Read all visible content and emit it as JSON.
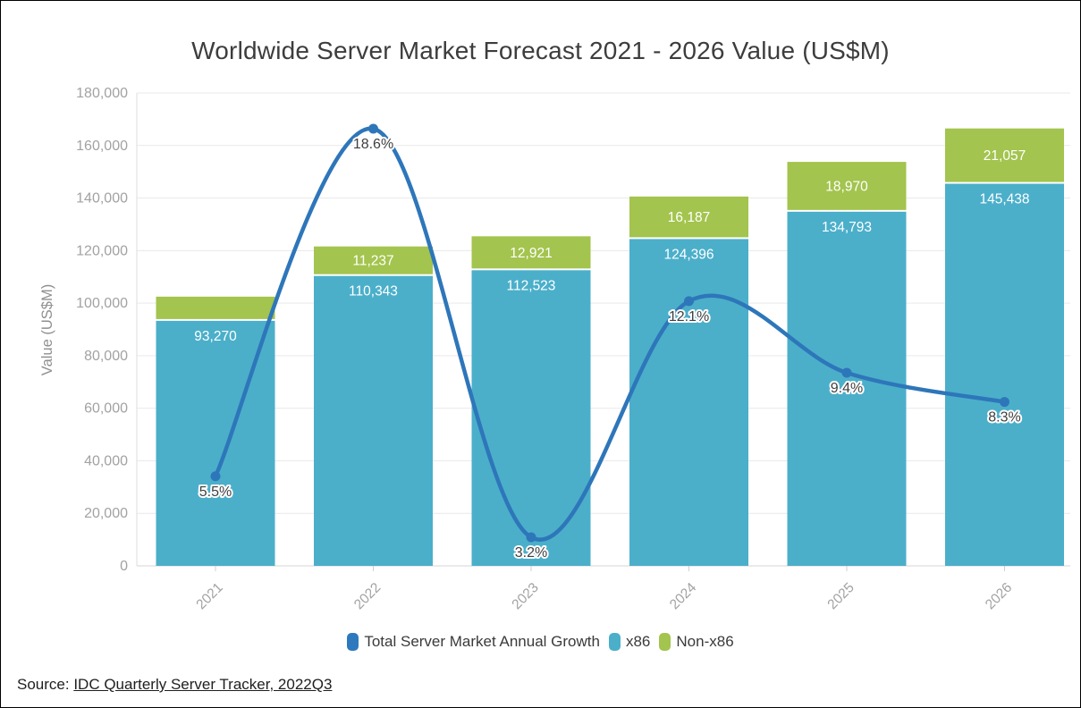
{
  "title": "Worldwide Server Market Forecast 2021 - 2026 Value (US$M)",
  "y_axis_label": "Value (US$M)",
  "legend": [
    {
      "label": "Total Server Market Annual Growth",
      "color": "#2e79bd"
    },
    {
      "label": "x86",
      "color": "#4bafca"
    },
    {
      "label": "Non-x86",
      "color": "#a3c44e"
    }
  ],
  "source": {
    "prefix": "Source: ",
    "link_text": "IDC Quarterly Server Tracker, 2022Q3"
  },
  "chart_data": {
    "type": "bar",
    "subtype": "stacked-column-with-line-overlay",
    "title": "Worldwide Server Market Forecast 2021 - 2026 Value (US$M)",
    "categories": [
      "2021",
      "2022",
      "2023",
      "2024",
      "2025",
      "2026"
    ],
    "y_axis": {
      "title": "Value (US$M)",
      "min": 0,
      "max": 180000,
      "tick_step": 20000,
      "tick_labels": [
        "0",
        "20,000",
        "40,000",
        "60,000",
        "80,000",
        "100,000",
        "120,000",
        "140,000",
        "160,000",
        "180,000"
      ],
      "grid": true
    },
    "legend_position": "bottom",
    "series": [
      {
        "name": "x86",
        "type": "bar",
        "color": "#4bafca",
        "values": [
          93270,
          110343,
          112523,
          124396,
          134793,
          145438
        ],
        "data_labels": [
          "93,270",
          "110,343",
          "112,523",
          "124,396",
          "134,793",
          "145,438"
        ]
      },
      {
        "name": "Non-x86",
        "type": "bar",
        "color": "#a3c44e",
        "values": [
          9200,
          11237,
          12921,
          16187,
          18970,
          21057
        ],
        "data_labels": [
          "",
          "11,237",
          "12,921",
          "16,187",
          "18,970",
          "21,057"
        ],
        "note": "2021 segment shown without a data label; its value is estimated from bar height"
      },
      {
        "name": "Total Server Market Annual Growth",
        "type": "line",
        "color": "#2e76ba",
        "values_pct": [
          5.5,
          18.6,
          3.2,
          12.1,
          9.4,
          8.3
        ],
        "data_labels": [
          "5.5%",
          "18.6%",
          "3.2%",
          "12.1%",
          "9.4%",
          "8.3%"
        ]
      }
    ]
  }
}
